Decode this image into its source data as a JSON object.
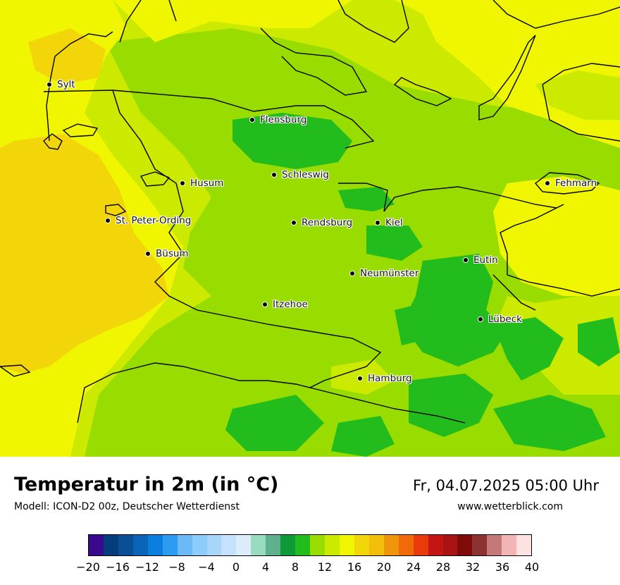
{
  "title": "Temperatur in 2m (in °C)",
  "subtitle": "Modell: ICON-D2 00z, Deutscher Wetterdienst",
  "datetime": "Fr, 04.07.2025 05:00 Uhr",
  "website": "www.wetterblick.com",
  "cities": [
    "Sylt",
    "Flensburg",
    "Schleswig",
    "Husum",
    "Fehmarn",
    "St. Peter-Ording",
    "Rendsburg",
    "Kiel",
    "Büsum",
    "Eutin",
    "Neumünster",
    "Itzehoe",
    "Lübeck",
    "Hamburg"
  ],
  "legend": {
    "ticks": [
      "−20",
      "−16",
      "−12",
      "−8",
      "−4",
      "0",
      "4",
      "8",
      "12",
      "16",
      "20",
      "24",
      "28",
      "32",
      "36",
      "40"
    ],
    "colors": [
      "#3a0a8c",
      "#053c7c",
      "#0a4f96",
      "#0a64b8",
      "#0a7fe0",
      "#2c9cf2",
      "#6bbaf7",
      "#8ccbfa",
      "#a8d6fb",
      "#c4e2fb",
      "#dcecfb",
      "#98dcc0",
      "#5fb08c",
      "#0f9a3a",
      "#22bc1c",
      "#98dc00",
      "#cbea00",
      "#f0f500",
      "#f2d60a",
      "#f2be0a",
      "#f0960a",
      "#f06a0a",
      "#e83a0a",
      "#c41414",
      "#a81414",
      "#7e0a0a",
      "#8c3232",
      "#c47878",
      "#f2b4b4",
      "#fde2e2"
    ]
  }
}
